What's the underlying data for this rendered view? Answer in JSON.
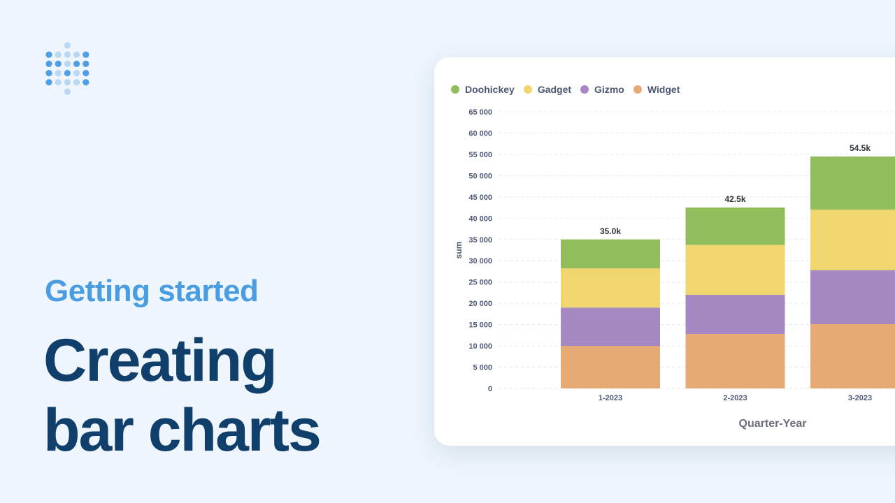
{
  "heading": {
    "subtitle": "Getting started",
    "title_lines": [
      "Creating",
      "bar charts"
    ]
  },
  "logo": {
    "icon": "metabase-dots-logo",
    "color_dark": "#509ee3",
    "color_light": "#b9d8f4"
  },
  "colors": {
    "Doohickey": "#91bd5c",
    "Gadget": "#f1d56e",
    "Gizmo": "#a688c2",
    "Widget": "#e8aa75"
  },
  "chart_data": {
    "type": "bar",
    "stacked": true,
    "categories": [
      "1-2023",
      "2-2023",
      "3-2023"
    ],
    "series": [
      {
        "name": "Widget",
        "values": [
          10000,
          12800,
          15100
        ]
      },
      {
        "name": "Gizmo",
        "values": [
          9000,
          9200,
          12700
        ]
      },
      {
        "name": "Gadget",
        "values": [
          9200,
          11700,
          14200
        ]
      },
      {
        "name": "Doohickey",
        "values": [
          6800,
          8800,
          12500
        ]
      }
    ],
    "totals": [
      "35.0k",
      "42.5k",
      "54.5k"
    ],
    "legend_order": [
      "Doohickey",
      "Gadget",
      "Gizmo",
      "Widget"
    ],
    "ylabel": "sum",
    "xlabel": "Quarter-Year",
    "ylim": [
      0,
      65000
    ],
    "yticks": [
      0,
      5000,
      10000,
      15000,
      20000,
      25000,
      30000,
      35000,
      40000,
      45000,
      50000,
      55000,
      60000,
      65000
    ],
    "ytick_labels": [
      "0",
      "5 000",
      "10 000",
      "15 000",
      "20 000",
      "25 000",
      "30 000",
      "35 000",
      "40 000",
      "45 000",
      "50 000",
      "55 000",
      "60 000",
      "65 000"
    ],
    "grid": "horizontal-dashed",
    "legend_position": "top-left"
  }
}
